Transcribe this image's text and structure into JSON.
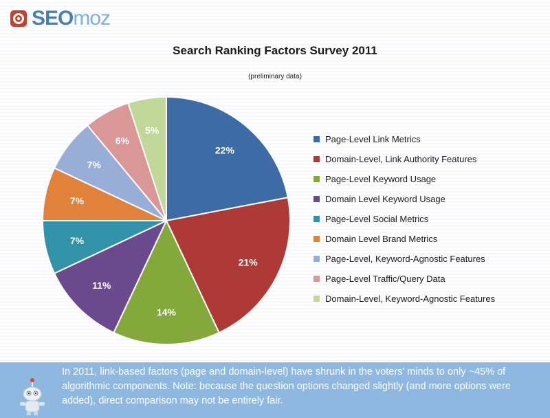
{
  "header": {
    "logo_seo": "SEO",
    "logo_moz": "moz"
  },
  "chart_data": {
    "type": "pie",
    "title": "Search Ranking Factors Survey 2011",
    "subtitle": "(preliminary data)",
    "legend_position": "right",
    "slices": [
      {
        "label": "Page-Level Link Metrics",
        "value": 22,
        "display": "22%",
        "color": "#3c6ba5"
      },
      {
        "label": "Domain-Level, Link Authority Features",
        "value": 21,
        "display": "21%",
        "color": "#ad3a36"
      },
      {
        "label": "Page-Level Keyword Usage",
        "value": 14,
        "display": "14%",
        "color": "#84a83c"
      },
      {
        "label": "Domain Level Keyword Usage",
        "value": 11,
        "display": "11%",
        "color": "#6a4a8c"
      },
      {
        "label": "Page-Level Social Metrics",
        "value": 7,
        "display": "7%",
        "color": "#3292a8"
      },
      {
        "label": "Domain Level Brand Metrics",
        "value": 7,
        "display": "7%",
        "color": "#e0823a"
      },
      {
        "label": "Page-Level, Keyword-Agnostic Features",
        "value": 7,
        "display": "7%",
        "color": "#98aed6"
      },
      {
        "label": "Page-Level Traffic/Query Data",
        "value": 6,
        "display": "6%",
        "color": "#d99796"
      },
      {
        "label": "Domain-Level, Keyword-Agnostic Features",
        "value": 5,
        "display": "5%",
        "color": "#c2d89b"
      }
    ]
  },
  "footer": {
    "text": "In 2011, link-based factors (page and domain-level) have shrunk in the voters’ minds to only ~45% of algorithmic components. Note: because the question options changed slightly (and more options were added), direct comparison may not be entirely fair."
  }
}
